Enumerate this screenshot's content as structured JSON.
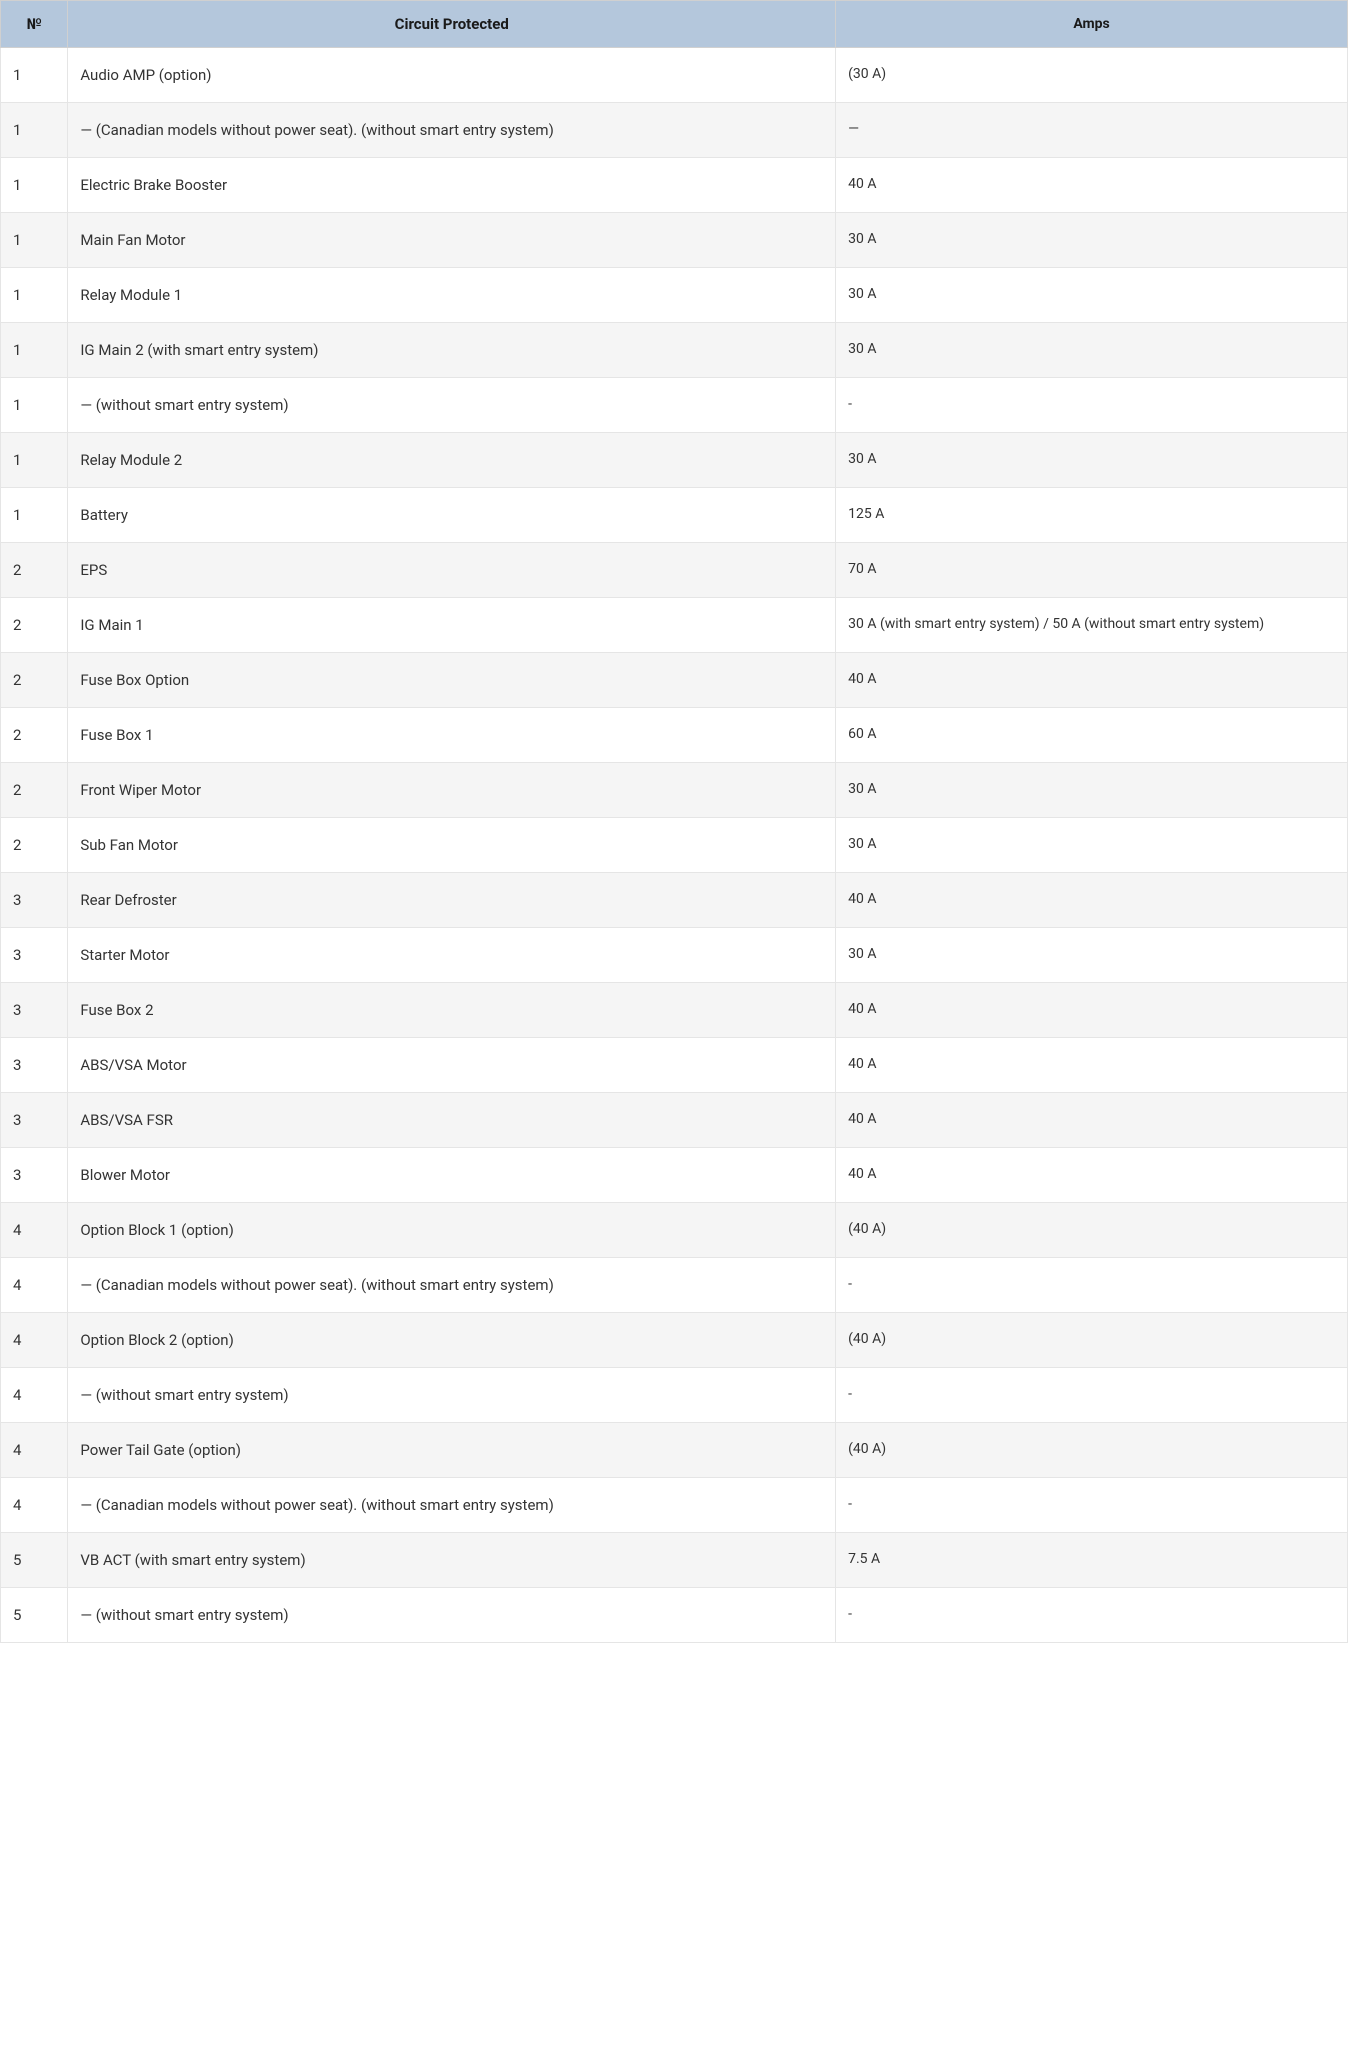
{
  "table": {
    "columns": [
      {
        "key": "num",
        "label": "№",
        "class": "col-num"
      },
      {
        "key": "circuit",
        "label": "Circuit Protected",
        "class": "col-circuit"
      },
      {
        "key": "amps",
        "label": "Amps",
        "class": "col-amps"
      }
    ],
    "rows": [
      {
        "num": "1",
        "circuit": "Audio AMP (option)",
        "amps": "(30 A)"
      },
      {
        "num": "1",
        "circuit": "— (Canadian models without power seat). (without smart entry system)",
        "amps": "—"
      },
      {
        "num": "1",
        "circuit": "Electric Brake Booster",
        "amps": "40 A"
      },
      {
        "num": "1",
        "circuit": "Main Fan Motor",
        "amps": "30 A"
      },
      {
        "num": "1",
        "circuit": "Relay Module 1",
        "amps": "30 A"
      },
      {
        "num": "1",
        "circuit": "IG Main 2 (with smart entry system)",
        "amps": "30 A"
      },
      {
        "num": "1",
        "circuit": "— (without smart entry system)",
        "amps": "-"
      },
      {
        "num": "1",
        "circuit": "Relay Module 2",
        "amps": "30 A"
      },
      {
        "num": "1",
        "circuit": "Battery",
        "amps": "125 A"
      },
      {
        "num": "2",
        "circuit": "EPS",
        "amps": "70 A"
      },
      {
        "num": "2",
        "circuit": "IG Main 1",
        "amps": "30 A (with smart entry system) / 50 A (without smart entry system)"
      },
      {
        "num": "2",
        "circuit": "Fuse Box Option",
        "amps": "40 A"
      },
      {
        "num": "2",
        "circuit": "Fuse Box 1",
        "amps": "60 A"
      },
      {
        "num": "2",
        "circuit": "Front Wiper Motor",
        "amps": "30 A"
      },
      {
        "num": "2",
        "circuit": "Sub Fan Motor",
        "amps": "30 A"
      },
      {
        "num": "3",
        "circuit": "Rear Defroster",
        "amps": "40 A"
      },
      {
        "num": "3",
        "circuit": "Starter Motor",
        "amps": "30 A"
      },
      {
        "num": "3",
        "circuit": "Fuse Box 2",
        "amps": "40 A"
      },
      {
        "num": "3",
        "circuit": "ABS/VSA Motor",
        "amps": "40 A"
      },
      {
        "num": "3",
        "circuit": "ABS/VSA FSR",
        "amps": "40 A"
      },
      {
        "num": "3",
        "circuit": "Blower Motor",
        "amps": "40 A"
      },
      {
        "num": "4",
        "circuit": "Option Block 1 (option)",
        "amps": "(40 A)"
      },
      {
        "num": "4",
        "circuit": "— (Canadian models without power seat). (without smart entry system)",
        "amps": "-"
      },
      {
        "num": "4",
        "circuit": "Option Block 2 (option)",
        "amps": "(40 A)"
      },
      {
        "num": "4",
        "circuit": "— (without smart entry system)",
        "amps": "-"
      },
      {
        "num": "4",
        "circuit": "Power Tail Gate (option)",
        "amps": "(40 A)"
      },
      {
        "num": "4",
        "circuit": "— (Canadian models without power seat). (without smart entry system)",
        "amps": "-"
      },
      {
        "num": "5",
        "circuit": "VB ACT (with smart entry system)",
        "amps": "7.5 A"
      },
      {
        "num": "5",
        "circuit": "— (without smart entry system)",
        "amps": "-"
      }
    ],
    "header_bg": "#b4c7dc",
    "row_alt_bg": "#f5f5f5",
    "row_bg": "#ffffff",
    "border_color": "#e5e5e5",
    "text_color": "#333333"
  }
}
